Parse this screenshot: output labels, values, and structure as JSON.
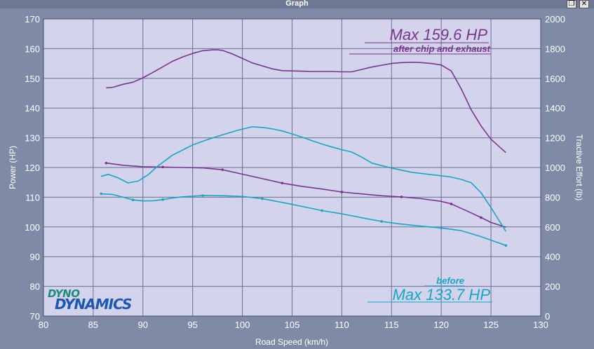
{
  "window": {
    "title": "Graph",
    "restore_icon": "restore-window-icon",
    "close_icon": "close-icon"
  },
  "logo": {
    "line1": "DYNO",
    "line2": "DYNAMICS"
  },
  "chart_data": {
    "type": "line",
    "xlabel": "Road Speed (km/h)",
    "ylabel": "Power (HP)",
    "y2label": "Tractive Effort (lb)",
    "xlim": [
      80,
      130
    ],
    "ylim": [
      70,
      170
    ],
    "y2lim": [
      0,
      2000
    ],
    "xticks": [
      "80",
      "85",
      "90",
      "95",
      "100",
      "105",
      "110",
      "115",
      "120",
      "125",
      "130"
    ],
    "yticks": [
      "70",
      "80",
      "90",
      "100",
      "110",
      "120",
      "130",
      "140",
      "150",
      "160",
      "170"
    ],
    "y2ticks": [
      "0",
      "200",
      "400",
      "600",
      "800",
      "1000",
      "1200",
      "1400",
      "1600",
      "1800",
      "2000"
    ],
    "grid": true,
    "colors": {
      "after": "#7a3590",
      "before": "#15a7c6",
      "plot_bg": "#d3d3ec",
      "grid": "#6d6f95",
      "frame": "#7f8aa6"
    },
    "annotations": [
      {
        "text": "Max 159.6 HP",
        "series": "after",
        "style": "title"
      },
      {
        "text": "after chip and exhaust",
        "series": "after",
        "style": "subtitle"
      },
      {
        "text": "before",
        "series": "before",
        "style": "subtitle"
      },
      {
        "text": "Max 133.7 HP",
        "series": "before",
        "style": "title"
      }
    ],
    "series": [
      {
        "id": "after-power",
        "group": "after",
        "axis": "left",
        "x": [
          86.3,
          87,
          88,
          89,
          90,
          91,
          92,
          93,
          94,
          95,
          96,
          97,
          97.5,
          98,
          99,
          100,
          101,
          102,
          103,
          104,
          105,
          106,
          107,
          108,
          109,
          110,
          111,
          112,
          113,
          114,
          115,
          116,
          117,
          117.5,
          118,
          119,
          120,
          121,
          122,
          123,
          124,
          125,
          126.5
        ],
        "y": [
          146.8,
          147,
          148,
          148.7,
          150.2,
          152,
          153.9,
          155.8,
          157.2,
          158.4,
          159.3,
          159.6,
          159.6,
          159.4,
          158.2,
          156.7,
          155.2,
          154.2,
          153.2,
          152.6,
          152.5,
          152.4,
          152.3,
          152.3,
          152.3,
          152.2,
          152.2,
          153,
          153.8,
          154.4,
          155,
          155.3,
          155.4,
          155.4,
          155.3,
          155,
          154.5,
          152.5,
          146.5,
          139.5,
          134,
          129.5,
          125
        ]
      },
      {
        "id": "after-tractive",
        "group": "after",
        "axis": "right",
        "x": [
          86.3,
          88,
          90,
          92,
          94,
          96,
          98,
          100,
          102,
          104,
          106,
          108,
          110,
          112,
          114,
          116,
          118,
          120,
          121,
          122,
          123,
          124,
          125,
          126.5
        ],
        "y": [
          1030,
          1015,
          1005,
          1003,
          1000,
          997,
          985,
          955,
          925,
          895,
          873,
          855,
          835,
          822,
          810,
          802,
          790,
          772,
          755,
          725,
          695,
          663,
          630,
          598
        ]
      },
      {
        "id": "before-power",
        "group": "before",
        "axis": "left",
        "x": [
          85.8,
          86.5,
          87.5,
          88.5,
          89.5,
          90.5,
          91.5,
          93,
          95,
          96.5,
          98,
          99.5,
          101,
          102,
          103,
          104,
          105,
          106,
          107,
          108,
          109,
          110,
          111,
          112,
          113,
          115,
          117,
          119,
          121,
          122,
          123,
          124,
          125,
          126.5
        ],
        "y": [
          117,
          117.7,
          116.5,
          114.8,
          115.4,
          117.5,
          120.5,
          124.2,
          127.6,
          129.4,
          131,
          132.5,
          133.7,
          133.5,
          133,
          132.3,
          131.3,
          130.2,
          129,
          127.9,
          126.9,
          126,
          125.2,
          123.5,
          121.5,
          119.8,
          118.4,
          117.6,
          116.8,
          116,
          114.9,
          111.5,
          106.5,
          98.5
        ]
      },
      {
        "id": "before-tractive",
        "group": "before",
        "axis": "right",
        "x": [
          85.8,
          87,
          88,
          89,
          90,
          91,
          92,
          93,
          94,
          96,
          98,
          100,
          102,
          104,
          106,
          108,
          110,
          112,
          114,
          116,
          118,
          120,
          122,
          124,
          126.5
        ],
        "y": [
          823,
          818,
          800,
          782,
          775,
          776,
          784,
          795,
          803,
          811,
          810,
          805,
          790,
          765,
          738,
          710,
          688,
          662,
          637,
          619,
          605,
          593,
          575,
          535,
          475
        ]
      }
    ]
  }
}
